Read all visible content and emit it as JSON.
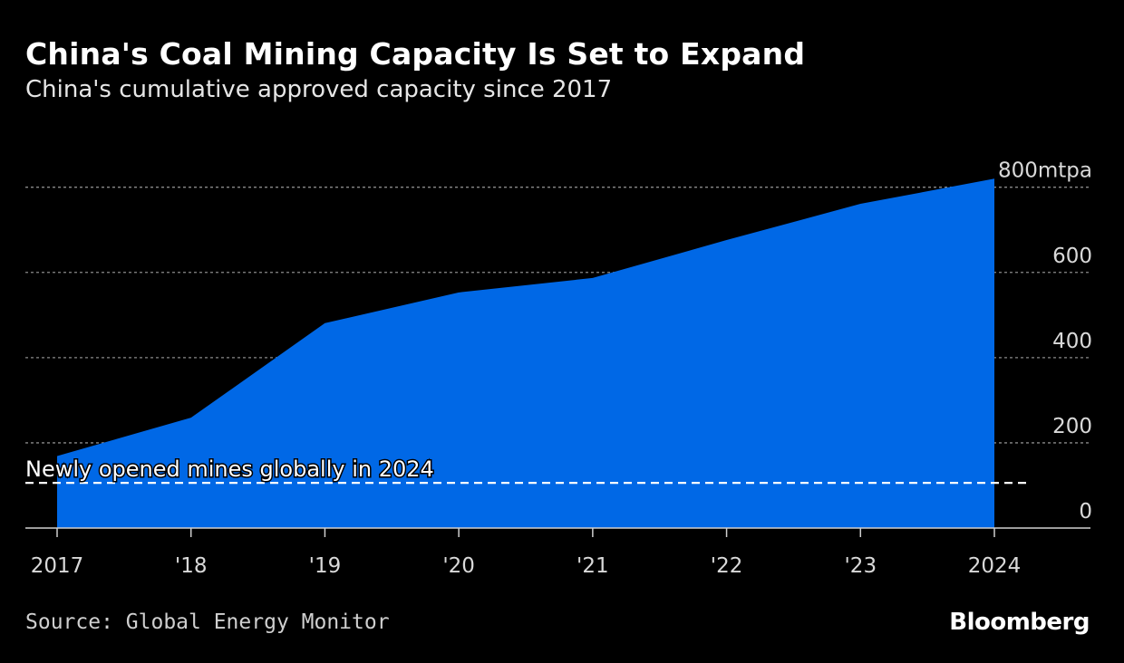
{
  "header": {
    "title": "China's Coal Mining Capacity Is Set to Expand",
    "subtitle": "China's cumulative approved capacity since 2017"
  },
  "footer": {
    "source": "Source: Global Energy Monitor",
    "logo": "Bloomberg"
  },
  "chart_data": {
    "type": "area",
    "categories": [
      "2017",
      "'18",
      "'19",
      "'20",
      "'21",
      "'22",
      "'23",
      "2024"
    ],
    "values": [
      169,
      259,
      481,
      553,
      587,
      676,
      761,
      820
    ],
    "ylim": [
      0,
      800
    ],
    "yticks": [
      0,
      200,
      400,
      600,
      800
    ],
    "ytick_labels": [
      "0",
      "200",
      "400",
      "600",
      "800mtpa"
    ],
    "grid": true,
    "y_axis_side": "right",
    "fill_color": "#0068e6",
    "reference_line": {
      "value": 106,
      "label": "Newly opened mines globally in 2024",
      "style": "dashed",
      "color": "#ffffff"
    }
  }
}
